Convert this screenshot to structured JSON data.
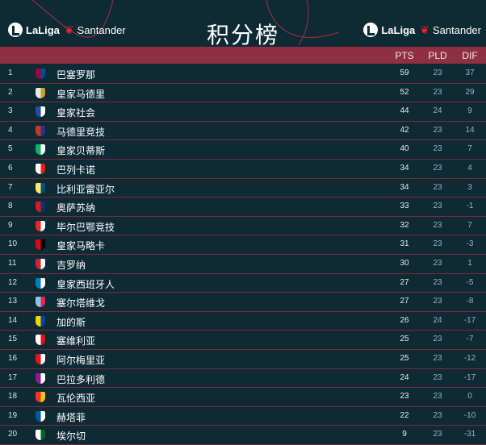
{
  "header": {
    "title": "积分榜",
    "logo_left": {
      "laliga": "LaLiga",
      "sponsor": "Santander"
    },
    "logo_right": {
      "laliga": "LaLiga",
      "sponsor": "Santander"
    }
  },
  "columns": {
    "pts": "PTS",
    "pld": "PLD",
    "dif": "DIF"
  },
  "rows": [
    {
      "pos": "1",
      "team": "巴塞罗那",
      "pts": "59",
      "pld": "23",
      "dif": "37",
      "crest_color": "#a50044",
      "crest_accent": "#004d98"
    },
    {
      "pos": "2",
      "team": "皇家马德里",
      "pts": "52",
      "pld": "23",
      "dif": "29",
      "crest_color": "#e8e8e8",
      "crest_accent": "#c9a227"
    },
    {
      "pos": "3",
      "team": "皇家社会",
      "pts": "44",
      "pld": "24",
      "dif": "9",
      "crest_color": "#1e4fa0",
      "crest_accent": "#ffffff"
    },
    {
      "pos": "4",
      "team": "马德里竞技",
      "pts": "42",
      "pld": "23",
      "dif": "14",
      "crest_color": "#cb3524",
      "crest_accent": "#1d3a8a"
    },
    {
      "pos": "5",
      "team": "皇家贝蒂斯",
      "pts": "40",
      "pld": "23",
      "dif": "7",
      "crest_color": "#0bb363",
      "crest_accent": "#ffffff"
    },
    {
      "pos": "6",
      "team": "巴列卡诺",
      "pts": "34",
      "pld": "23",
      "dif": "4",
      "crest_color": "#ffffff",
      "crest_accent": "#e2231a"
    },
    {
      "pos": "7",
      "team": "比利亚雷亚尔",
      "pts": "34",
      "pld": "23",
      "dif": "3",
      "crest_color": "#ffe667",
      "crest_accent": "#005187"
    },
    {
      "pos": "8",
      "team": "奥萨苏纳",
      "pts": "33",
      "pld": "23",
      "dif": "-1",
      "crest_color": "#d91a21",
      "crest_accent": "#0a346f"
    },
    {
      "pos": "9",
      "team": "毕尔巴鄂竞技",
      "pts": "32",
      "pld": "23",
      "dif": "7",
      "crest_color": "#ee2523",
      "crest_accent": "#ffffff"
    },
    {
      "pos": "10",
      "team": "皇家马略卡",
      "pts": "31",
      "pld": "23",
      "dif": "-3",
      "crest_color": "#e20613",
      "crest_accent": "#000000"
    },
    {
      "pos": "11",
      "team": "吉罗纳",
      "pts": "30",
      "pld": "23",
      "dif": "1",
      "crest_color": "#cd2534",
      "crest_accent": "#ffffff"
    },
    {
      "pos": "12",
      "team": "皇家西班牙人",
      "pts": "27",
      "pld": "23",
      "dif": "-5",
      "crest_color": "#007fc8",
      "crest_accent": "#ffffff"
    },
    {
      "pos": "13",
      "team": "塞尔塔维戈",
      "pts": "27",
      "pld": "23",
      "dif": "-8",
      "crest_color": "#8ac3ee",
      "crest_accent": "#e5254e"
    },
    {
      "pos": "14",
      "team": "加的斯",
      "pts": "26",
      "pld": "24",
      "dif": "-17",
      "crest_color": "#f6d400",
      "crest_accent": "#0045a7"
    },
    {
      "pos": "15",
      "team": "塞维利亚",
      "pts": "25",
      "pld": "23",
      "dif": "-7",
      "crest_color": "#ffffff",
      "crest_accent": "#d8141d"
    },
    {
      "pos": "16",
      "team": "阿尔梅里亚",
      "pts": "25",
      "pld": "23",
      "dif": "-12",
      "crest_color": "#ee1119",
      "crest_accent": "#ffffff"
    },
    {
      "pos": "17",
      "team": "巴拉多利德",
      "pts": "24",
      "pld": "23",
      "dif": "-17",
      "crest_color": "#921b88",
      "crest_accent": "#ffffff"
    },
    {
      "pos": "18",
      "team": "瓦伦西亚",
      "pts": "23",
      "pld": "23",
      "dif": "0",
      "crest_color": "#ee3524",
      "crest_accent": "#f7c417"
    },
    {
      "pos": "19",
      "team": "赫塔菲",
      "pts": "22",
      "pld": "23",
      "dif": "-10",
      "crest_color": "#005999",
      "crest_accent": "#ffffff"
    },
    {
      "pos": "20",
      "team": "埃尔切",
      "pts": "9",
      "pld": "23",
      "dif": "-31",
      "crest_color": "#ffffff",
      "crest_accent": "#05642c"
    }
  ],
  "colors": {
    "background": "#0d2a35",
    "header_bar": "#8e2f43",
    "row_divider": "#7a2a3c",
    "stat_blue": "#8fb6c9"
  }
}
